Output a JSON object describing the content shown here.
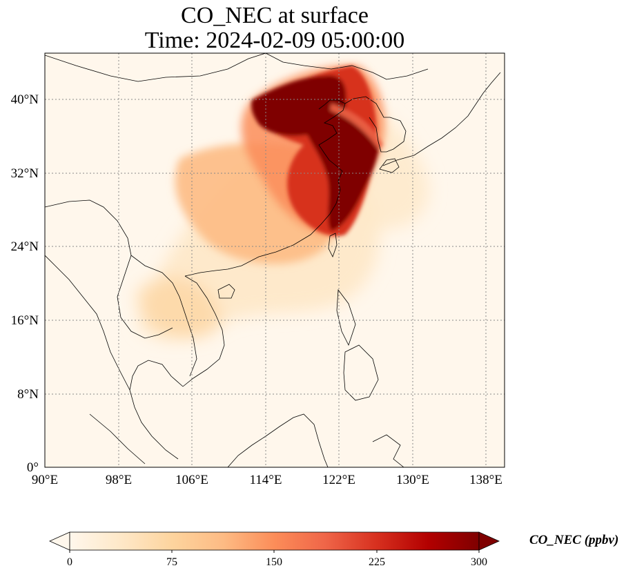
{
  "title": "CO_NEC at surface",
  "subtitle": "Time: 2024-02-09 05:00:00",
  "map": {
    "extent": {
      "lon_min": 90,
      "lon_max": 140,
      "lat_min": 0,
      "lat_max": 45
    },
    "lat_ticks": [
      {
        "value": 0,
        "label": "0°"
      },
      {
        "value": 8,
        "label": "8°N"
      },
      {
        "value": 16,
        "label": "16°N"
      },
      {
        "value": 24,
        "label": "24°N"
      },
      {
        "value": 32,
        "label": "32°N"
      },
      {
        "value": 40,
        "label": "40°N"
      }
    ],
    "lon_ticks": [
      {
        "value": 90,
        "label": "90°E"
      },
      {
        "value": 98,
        "label": "98°E"
      },
      {
        "value": 106,
        "label": "106°E"
      },
      {
        "value": 114,
        "label": "114°E"
      },
      {
        "value": 122,
        "label": "122°E"
      },
      {
        "value": 130,
        "label": "130°E"
      },
      {
        "value": 138,
        "label": "138°E"
      }
    ],
    "gridlines": "dotted",
    "colormap": "OrRd",
    "colors": [
      "#fff7ec",
      "#fee8c8",
      "#fdd49e",
      "#fdbb84",
      "#fc8d59",
      "#ef6548",
      "#d7301f",
      "#b30000",
      "#7f0000"
    ]
  },
  "colorbar": {
    "label": "CO_NEC (ppbv)",
    "min": 0,
    "max": 300,
    "extend": "both",
    "ticks": [
      {
        "value": 0,
        "label": "0"
      },
      {
        "value": 75,
        "label": "75"
      },
      {
        "value": 150,
        "label": "150"
      },
      {
        "value": 225,
        "label": "225"
      },
      {
        "value": 300,
        "label": "300"
      }
    ]
  }
}
